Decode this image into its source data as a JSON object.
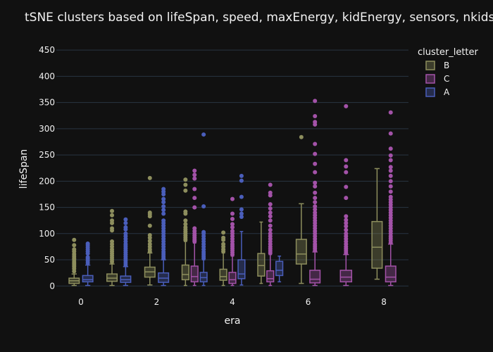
{
  "chart_data": {
    "type": "box",
    "title": "tSNE clusters based on lifeSpan, speed, maxEnergy, kidEnergy, sensors, nkids",
    "xlabel": "era",
    "ylabel": "lifeSpan",
    "x_ticks": [
      0,
      2,
      4,
      6,
      8
    ],
    "y_ticks": [
      0,
      50,
      100,
      150,
      200,
      250,
      300,
      350,
      400,
      450
    ],
    "xlim": [
      -0.65,
      8.65
    ],
    "ylim": [
      -5,
      465
    ],
    "grid": true,
    "legend_position": "top-right",
    "legend_title": "cluster_letter",
    "series": [
      {
        "name": "B",
        "color": "#8d8e5d",
        "boxes": [
          {
            "era": 0,
            "q1": 5,
            "median": 10,
            "q3": 15,
            "whisker_low": 1,
            "whisker_high": 23,
            "outliers": [
              28,
              33,
              37,
              40,
              43,
              46,
              50,
              53,
              57,
              61,
              66,
              70,
              78,
              88
            ]
          },
          {
            "era": 1,
            "q1": 9,
            "median": 15,
            "q3": 23,
            "whisker_low": 1,
            "whisker_high": 42,
            "outliers": [
              46,
              50,
              54,
              58,
              62,
              66,
              70,
              75,
              80,
              85,
              106,
              110,
              120,
              125,
              135,
              143
            ]
          },
          {
            "era": 2,
            "q1": 17,
            "median": 27,
            "q3": 36,
            "whisker_low": 2,
            "whisker_high": 63,
            "outliers": [
              66,
              70,
              75,
              80,
              86,
              92,
              97,
              115,
              133,
              137,
              140,
              206
            ]
          },
          {
            "era": 3,
            "q1": 12,
            "median": 22,
            "q3": 40,
            "whisker_low": 1,
            "whisker_high": 85,
            "outliers": [
              88,
              92,
              96,
              100,
              104,
              108,
              112,
              118,
              125,
              138,
              142,
              182,
              193,
              203
            ]
          },
          {
            "era": 4,
            "q1": 11,
            "median": 18,
            "q3": 32,
            "whisker_low": 1,
            "whisker_high": 63,
            "outliers": [
              66,
              70,
              75,
              80,
              88,
              92,
              102
            ]
          },
          {
            "era": 5,
            "q1": 19,
            "median": 39,
            "q3": 62,
            "whisker_low": 5,
            "whisker_high": 122,
            "outliers": []
          },
          {
            "era": 6,
            "q1": 42,
            "median": 61,
            "q3": 89,
            "whisker_low": 5,
            "whisker_high": 157,
            "outliers": [
              284
            ]
          },
          {
            "era": 8,
            "q1": 34,
            "median": 74,
            "q3": 123,
            "whisker_low": 13,
            "whisker_high": 224,
            "outliers": []
          }
        ]
      },
      {
        "name": "C",
        "color": "#a352a8",
        "boxes": [
          {
            "era": 3,
            "q1": 8,
            "median": 18,
            "q3": 38,
            "whisker_low": 1,
            "whisker_high": 82,
            "outliers": [
              85,
              88,
              92,
              96,
              100,
              105,
              110,
              150,
              168,
              185,
              205,
              212,
              220
            ]
          },
          {
            "era": 4,
            "q1": 5,
            "median": 12,
            "q3": 26,
            "whisker_low": 1,
            "whisker_high": 57,
            "outliers": [
              60,
              64,
              68,
              72,
              76,
              80,
              85,
              90,
              95,
              100,
              105,
              112,
              118,
              128,
              138,
              166
            ]
          },
          {
            "era": 5,
            "q1": 8,
            "median": 14,
            "q3": 29,
            "whisker_low": 1,
            "whisker_high": 60,
            "outliers": [
              63,
              67,
              71,
              75,
              80,
              85,
              90,
              95,
              100,
              107,
              115,
              125,
              133,
              140,
              148,
              156,
              173,
              178,
              193
            ]
          },
          {
            "era": 6,
            "q1": 6,
            "median": 13,
            "q3": 30,
            "whisker_low": 1,
            "whisker_high": 65,
            "outliers": [
              68,
              72,
              76,
              80,
              85,
              90,
              95,
              100,
              105,
              110,
              115,
              120,
              125,
              130,
              135,
              140,
              146,
              152,
              160,
              168,
              178,
              190,
              197,
              217,
              233,
              252,
              271,
              308,
              313,
              324,
              353
            ]
          },
          {
            "era": 7,
            "q1": 8,
            "median": 17,
            "q3": 30,
            "whisker_low": 1,
            "whisker_high": 60,
            "outliers": [
              63,
              67,
              71,
              75,
              80,
              85,
              90,
              95,
              100,
              107,
              114,
              120,
              126,
              133,
              168,
              189,
              217,
              228,
              240,
              343
            ]
          },
          {
            "era": 8,
            "q1": 8,
            "median": 17,
            "q3": 38,
            "whisker_low": 1,
            "whisker_high": 80,
            "outliers": [
              83,
              87,
              91,
              95,
              100,
              105,
              110,
              115,
              120,
              125,
              130,
              135,
              140,
              145,
              150,
              155,
              160,
              165,
              170,
              180,
              190,
              200,
              210,
              220,
              227,
              240,
              249,
              262,
              291,
              331
            ]
          }
        ]
      },
      {
        "name": "A",
        "color": "#4a5ebb",
        "boxes": [
          {
            "era": 0,
            "q1": 8,
            "median": 12,
            "q3": 20,
            "whisker_low": 1,
            "whisker_high": 40,
            "outliers": [
              44,
              48,
              52,
              55,
              62,
              66,
              70,
              74,
              78,
              81
            ]
          },
          {
            "era": 1,
            "q1": 7,
            "median": 12,
            "q3": 19,
            "whisker_low": 1,
            "whisker_high": 37,
            "outliers": [
              40,
              44,
              48,
              52,
              56,
              60,
              64,
              68,
              72,
              76,
              80,
              85,
              90,
              95,
              100,
              108,
              112,
              120,
              127
            ]
          },
          {
            "era": 2,
            "q1": 7,
            "median": 15,
            "q3": 25,
            "whisker_low": 1,
            "whisker_high": 50,
            "outliers": [
              53,
              57,
              61,
              65,
              70,
              75,
              80,
              85,
              90,
              95,
              100,
              105,
              110,
              115,
              120,
              125,
              138,
              145,
              152,
              160,
              166,
              175,
              180,
              185
            ]
          },
          {
            "era": 3,
            "q1": 8,
            "median": 16,
            "q3": 26,
            "whisker_low": 1,
            "whisker_high": 50,
            "outliers": [
              53,
              57,
              61,
              65,
              70,
              75,
              80,
              85,
              90,
              95,
              100,
              103,
              152,
              289
            ]
          },
          {
            "era": 4,
            "q1": 14,
            "median": 23,
            "q3": 50,
            "whisker_low": 2,
            "whisker_high": 104,
            "outliers": [
              132,
              138,
              146,
              170,
              201,
              210
            ]
          },
          {
            "era": 5,
            "q1": 20,
            "median": 30,
            "q3": 47,
            "whisker_low": 8,
            "whisker_high": 57,
            "outliers": []
          }
        ]
      }
    ]
  }
}
